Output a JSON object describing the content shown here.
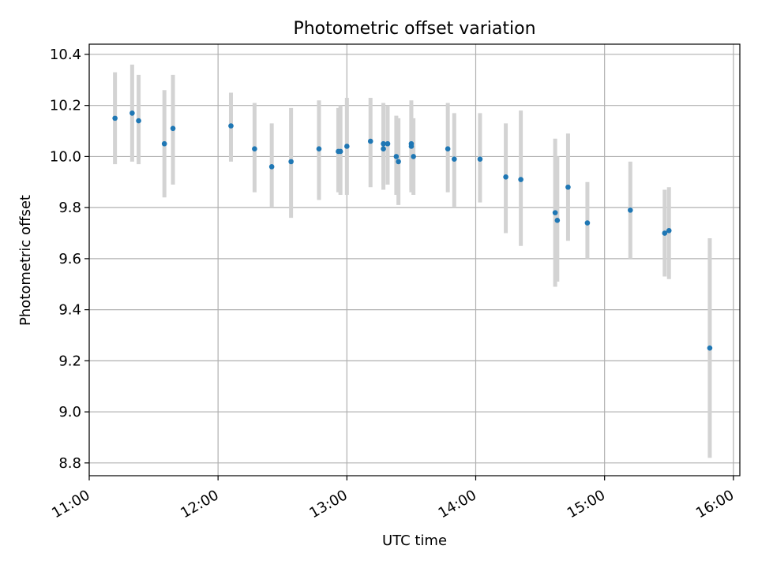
{
  "chart_data": {
    "type": "scatter",
    "title": "Photometric offset variation",
    "xlabel": "UTC time",
    "ylabel": "Photometric offset",
    "x_axis": "time",
    "xlim": [
      "11:00",
      "16:03"
    ],
    "ylim": [
      8.75,
      10.44
    ],
    "x_ticks": [
      "11:00",
      "12:00",
      "13:00",
      "14:00",
      "15:00",
      "16:00"
    ],
    "y_ticks": [
      "8.8",
      "9.0",
      "9.2",
      "9.4",
      "9.6",
      "9.8",
      "10.0",
      "10.2",
      "10.4"
    ],
    "grid": true,
    "x_tick_rotation": "rotated ~30°",
    "marker_color": "#1f77b4",
    "errorbar_color": "#d3d3d3",
    "points": [
      {
        "t": "11:12",
        "y": 10.15,
        "lo": 9.97,
        "hi": 10.33
      },
      {
        "t": "11:20",
        "y": 10.17,
        "lo": 9.98,
        "hi": 10.36
      },
      {
        "t": "11:23",
        "y": 10.14,
        "lo": 9.97,
        "hi": 10.32
      },
      {
        "t": "11:35",
        "y": 10.05,
        "lo": 9.84,
        "hi": 10.26
      },
      {
        "t": "11:39",
        "y": 10.11,
        "lo": 9.89,
        "hi": 10.32
      },
      {
        "t": "12:06",
        "y": 10.12,
        "lo": 9.98,
        "hi": 10.25
      },
      {
        "t": "12:17",
        "y": 10.03,
        "lo": 9.86,
        "hi": 10.21
      },
      {
        "t": "12:25",
        "y": 9.96,
        "lo": 9.8,
        "hi": 10.13
      },
      {
        "t": "12:34",
        "y": 9.98,
        "lo": 9.76,
        "hi": 10.19
      },
      {
        "t": "12:47",
        "y": 10.03,
        "lo": 9.83,
        "hi": 10.22
      },
      {
        "t": "12:56",
        "y": 10.02,
        "lo": 9.86,
        "hi": 10.19
      },
      {
        "t": "12:57",
        "y": 10.02,
        "lo": 9.85,
        "hi": 10.2
      },
      {
        "t": "13:00",
        "y": 10.04,
        "lo": 9.85,
        "hi": 10.23
      },
      {
        "t": "13:11",
        "y": 10.06,
        "lo": 9.88,
        "hi": 10.23
      },
      {
        "t": "13:17",
        "y": 10.05,
        "lo": 9.89,
        "hi": 10.21
      },
      {
        "t": "13:17",
        "y": 10.03,
        "lo": 9.87,
        "hi": 10.2
      },
      {
        "t": "13:19",
        "y": 10.05,
        "lo": 9.89,
        "hi": 10.2
      },
      {
        "t": "13:23",
        "y": 10.0,
        "lo": 9.85,
        "hi": 10.16
      },
      {
        "t": "13:24",
        "y": 9.98,
        "lo": 9.81,
        "hi": 10.15
      },
      {
        "t": "13:30",
        "y": 10.05,
        "lo": 9.87,
        "hi": 10.22
      },
      {
        "t": "13:30",
        "y": 10.04,
        "lo": 9.86,
        "hi": 10.2
      },
      {
        "t": "13:31",
        "y": 10.0,
        "lo": 9.85,
        "hi": 10.15
      },
      {
        "t": "13:47",
        "y": 10.03,
        "lo": 9.86,
        "hi": 10.21
      },
      {
        "t": "13:50",
        "y": 9.99,
        "lo": 9.8,
        "hi": 10.17
      },
      {
        "t": "14:02",
        "y": 9.99,
        "lo": 9.82,
        "hi": 10.17
      },
      {
        "t": "14:14",
        "y": 9.92,
        "lo": 9.7,
        "hi": 10.13
      },
      {
        "t": "14:21",
        "y": 9.91,
        "lo": 9.65,
        "hi": 10.18
      },
      {
        "t": "14:37",
        "y": 9.78,
        "lo": 9.49,
        "hi": 10.07
      },
      {
        "t": "14:38",
        "y": 9.75,
        "lo": 9.51,
        "hi": 10.0
      },
      {
        "t": "14:43",
        "y": 9.88,
        "lo": 9.67,
        "hi": 10.09
      },
      {
        "t": "14:52",
        "y": 9.74,
        "lo": 9.6,
        "hi": 9.9
      },
      {
        "t": "15:12",
        "y": 9.79,
        "lo": 9.6,
        "hi": 9.98
      },
      {
        "t": "15:28",
        "y": 9.7,
        "lo": 9.53,
        "hi": 9.87
      },
      {
        "t": "15:30",
        "y": 9.71,
        "lo": 9.52,
        "hi": 9.88
      },
      {
        "t": "15:49",
        "y": 9.25,
        "lo": 8.82,
        "hi": 9.68
      }
    ]
  }
}
